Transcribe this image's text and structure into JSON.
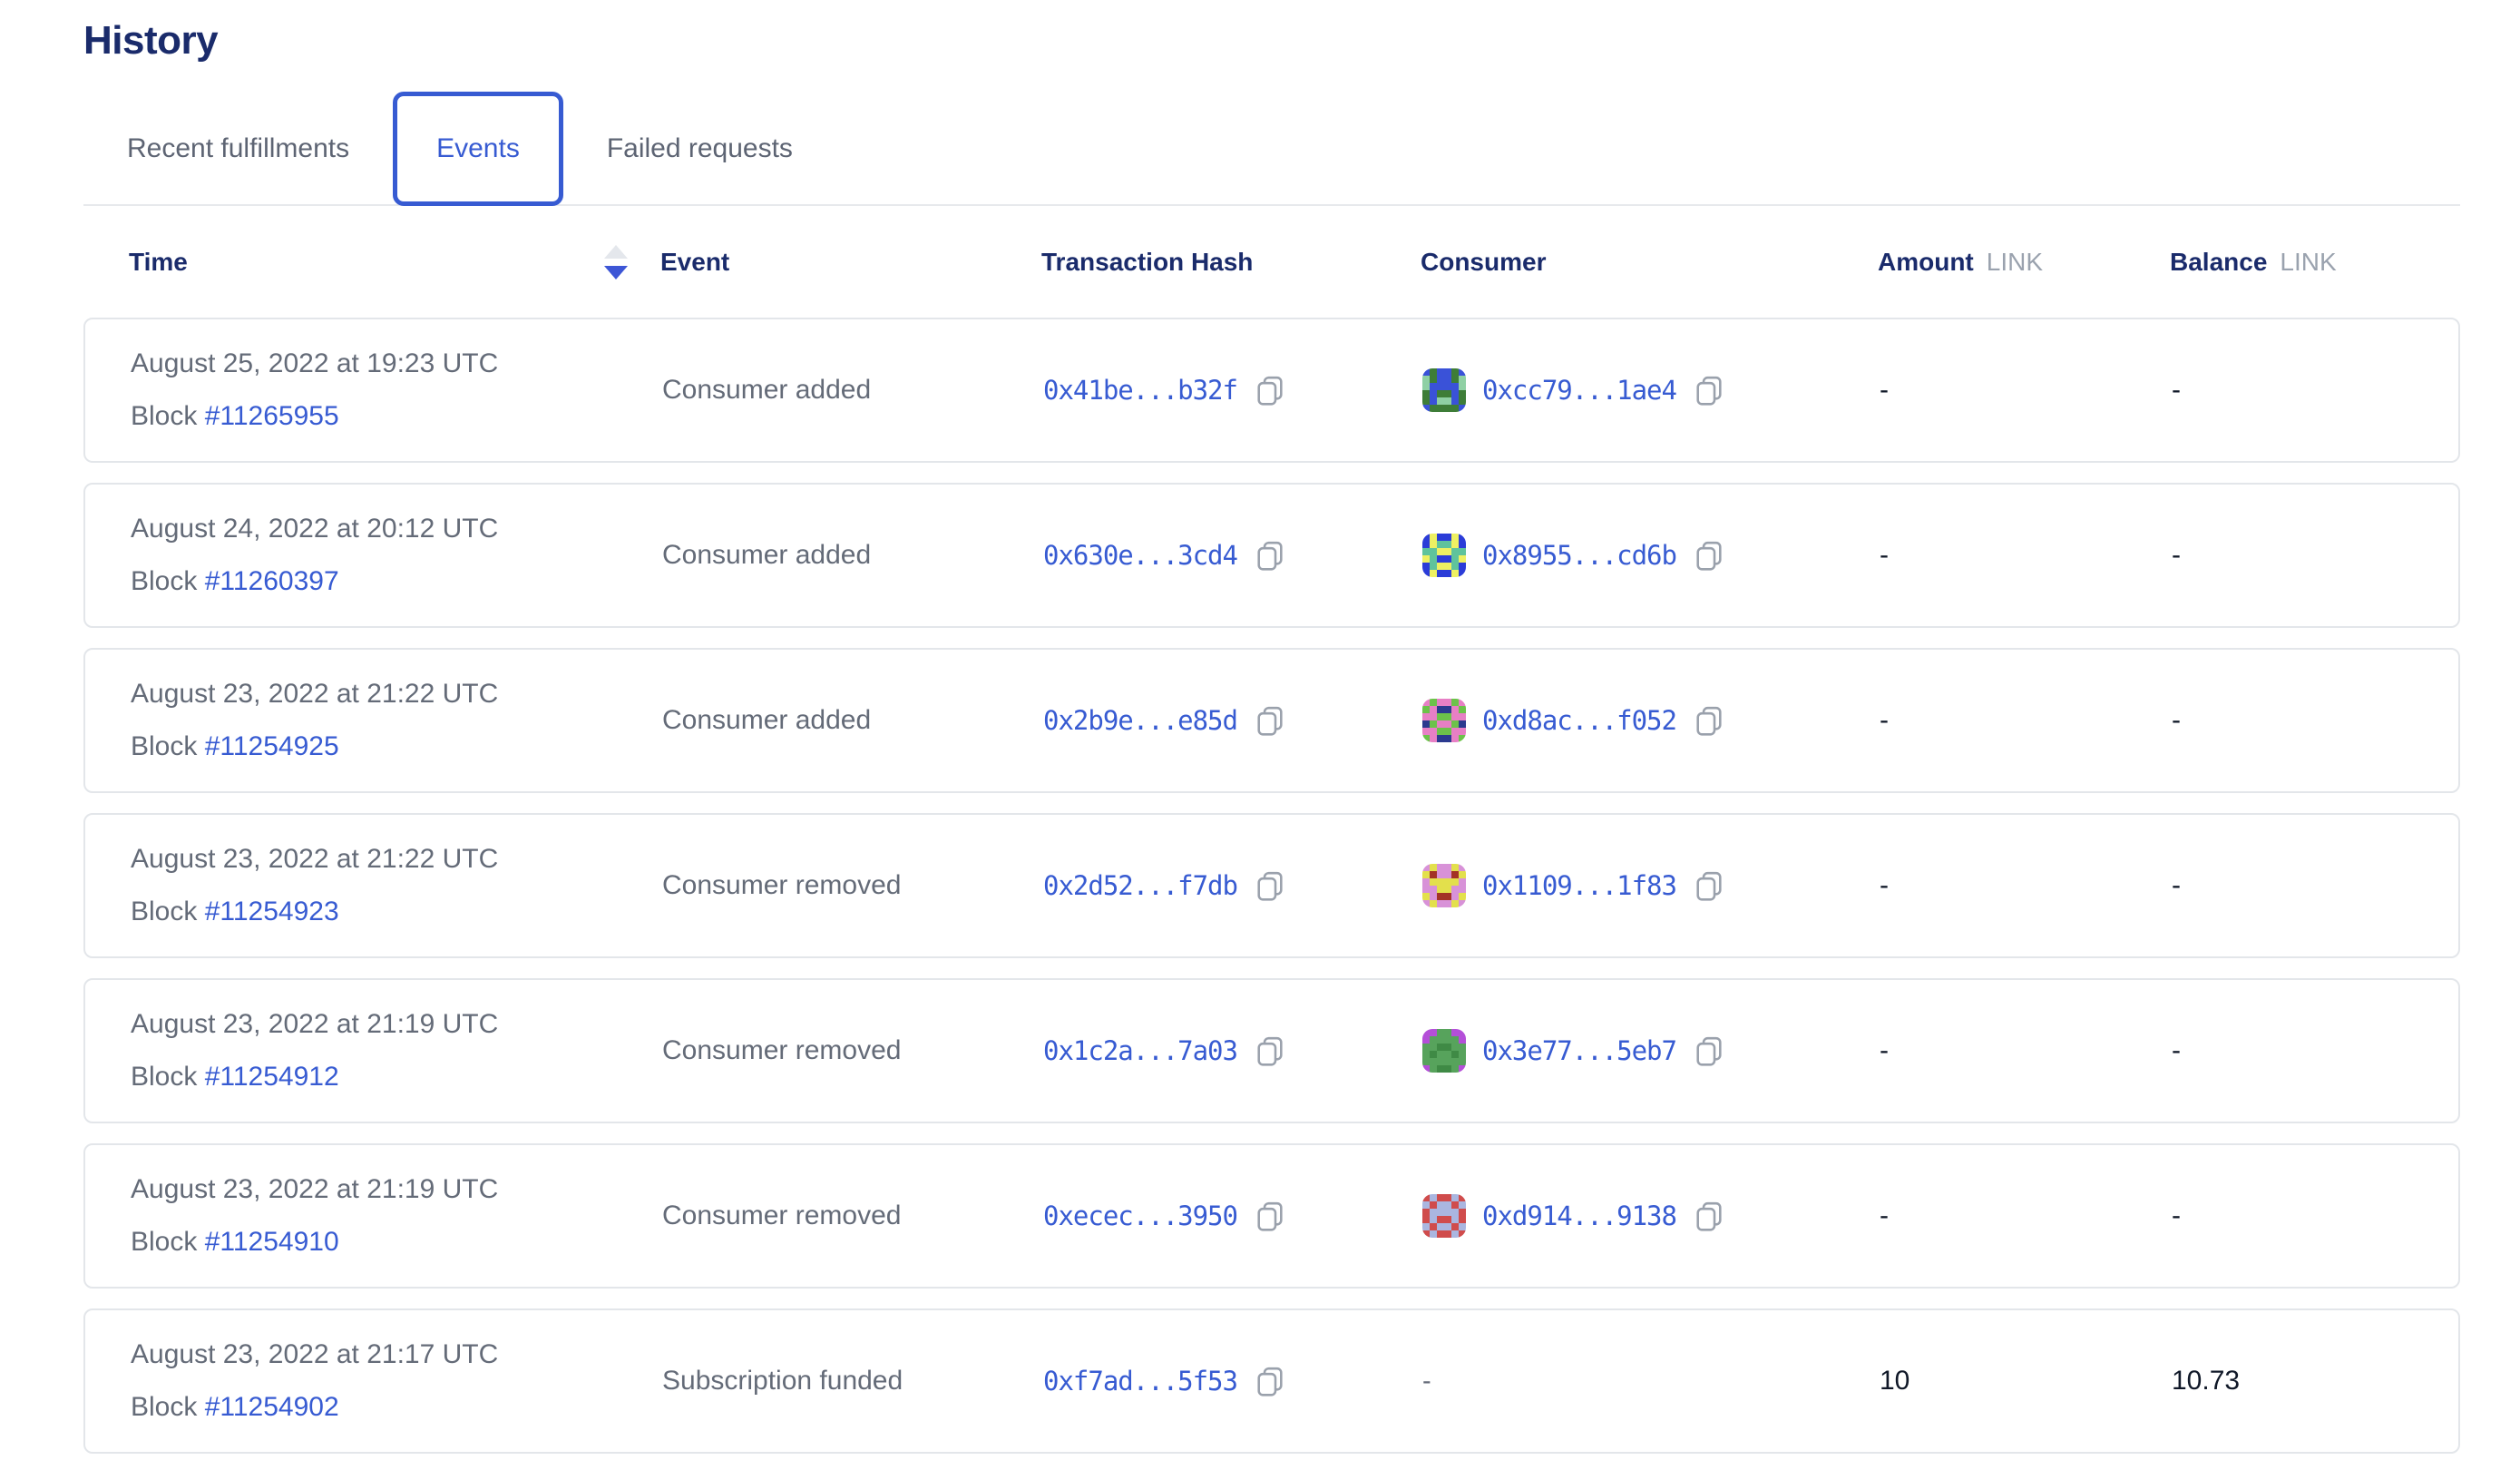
{
  "page": {
    "title": "History"
  },
  "tabs": [
    {
      "label": "Recent fulfillments",
      "active": false
    },
    {
      "label": "Events",
      "active": true
    },
    {
      "label": "Failed requests",
      "active": false
    }
  ],
  "theme": {
    "link_blue": "#375bd2",
    "heading_navy": "#1a2b6b",
    "text_gray": "#646b78",
    "unit_gray": "#9aa2ae",
    "card_border": "#e3e6ea",
    "value_dark": "#101828",
    "sort_inactive": "#e4e7ec"
  },
  "icons": {
    "sort": "sort-arrows (up inactive gray, down active blue)",
    "copy": "copy-to-clipboard outline"
  },
  "table": {
    "block_label": "Block",
    "columns": {
      "time": "Time",
      "event": "Event",
      "tx": "Transaction Hash",
      "consumer": "Consumer",
      "amount": "Amount",
      "balance": "Balance",
      "unit": "LINK"
    },
    "rows": [
      {
        "date": "August 25, 2022 at 19:23 UTC",
        "block": "#11265955",
        "event": "Consumer added",
        "tx": "0x41be...b32f",
        "consumer": {
          "address": "0xcc79...1ae4",
          "avatar": {
            "colors": [
              "#3e7d38",
              "#3a52d8",
              "#8fd0a4"
            ],
            "grid": [
              "101101",
              "201102",
              "211112",
              "010010",
              "012210",
              "100001"
            ]
          }
        },
        "amount": "-",
        "balance": "-"
      },
      {
        "date": "August 24, 2022 at 20:12 UTC",
        "block": "#11260397",
        "event": "Consumer added",
        "tx": "0x630e...3cd4",
        "consumer": {
          "address": "0x8955...cd6b",
          "avatar": {
            "colors": [
              "#2b3cd8",
              "#eef062",
              "#5fc39c"
            ],
            "grid": [
              "010010",
              "012210",
              "221122",
              "120021",
              "021120",
              "010010"
            ]
          }
        },
        "amount": "-",
        "balance": "-"
      },
      {
        "date": "August 23, 2022 at 21:22 UTC",
        "block": "#11254925",
        "event": "Consumer added",
        "tx": "0x2b9e...e85d",
        "consumer": {
          "address": "0xd8ac...f052",
          "avatar": {
            "colors": [
              "#6cc24a",
              "#e77fc5",
              "#2b3a8f"
            ],
            "grid": [
              "101101",
              "012210",
              "110011",
              "201102",
              "110011",
              "012210"
            ]
          }
        },
        "amount": "-",
        "balance": "-"
      },
      {
        "date": "August 23, 2022 at 21:22 UTC",
        "block": "#11254923",
        "event": "Consumer removed",
        "tx": "0x2d52...f7db",
        "consumer": {
          "address": "0x1109...1f83",
          "avatar": {
            "colors": [
              "#d892d8",
              "#e3e04c",
              "#a33226"
            ],
            "grid": [
              "010010",
              "120021",
              "011110",
              "001100",
              "102201",
              "010010"
            ]
          }
        },
        "amount": "-",
        "balance": "-"
      },
      {
        "date": "August 23, 2022 at 21:19 UTC",
        "block": "#11254912",
        "event": "Consumer removed",
        "tx": "0x1c2a...7a03",
        "consumer": {
          "address": "0x3e77...5eb7",
          "avatar": {
            "colors": [
              "#57a35c",
              "#b44fd8",
              "#3f8a45"
            ],
            "grid": [
              "110011",
              "100001",
              "002200",
              "020020",
              "000000",
              "102201"
            ]
          }
        },
        "amount": "-",
        "balance": "-"
      },
      {
        "date": "August 23, 2022 at 21:19 UTC",
        "block": "#11254910",
        "event": "Consumer removed",
        "tx": "0xecec...3950",
        "consumer": {
          "address": "0xd914...9138",
          "avatar": {
            "colors": [
              "#d04c4c",
              "#aab6e0",
              "#c03d3d"
            ],
            "grid": [
              "010010",
              "101101",
              "011110",
              "010010",
              "101101",
              "010010"
            ]
          }
        },
        "amount": "-",
        "balance": "-"
      },
      {
        "date": "August 23, 2022 at 21:17 UTC",
        "block": "#11254902",
        "event": "Subscription funded",
        "tx": "0xf7ad...5f53",
        "consumer": {
          "address": "-",
          "avatar": null
        },
        "amount": "10",
        "balance": "10.73"
      }
    ]
  }
}
